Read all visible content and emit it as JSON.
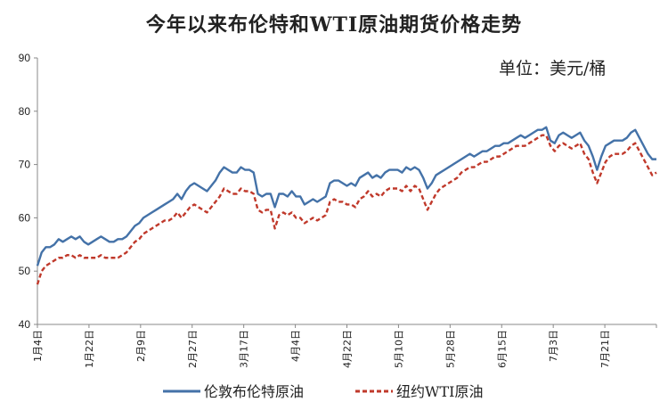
{
  "chart_data": {
    "type": "line",
    "title": "今年以来布伦特和WTI原油期货价格走势",
    "unit_label": "单位：美元/桶",
    "ylim": [
      40,
      90
    ],
    "yticks": [
      40,
      50,
      60,
      70,
      80,
      90
    ],
    "xticks": [
      "1月4日",
      "1月22日",
      "2月9日",
      "2月27日",
      "3月17日",
      "4月4日",
      "4月22日",
      "5月10日",
      "5月28日",
      "6月15日",
      "7月3日",
      "7月21日"
    ],
    "grid": false,
    "legend_position": "bottom",
    "colors": {
      "brent": "#4472a8",
      "wti": "#c0392b"
    },
    "series": [
      {
        "name": "伦敦布伦特原油",
        "key": "brent",
        "values": [
          51.0,
          53.5,
          54.5,
          54.5,
          55.0,
          56.0,
          55.5,
          56.0,
          56.5,
          56.0,
          56.5,
          55.5,
          55.0,
          55.5,
          56.0,
          56.5,
          56.0,
          55.5,
          55.5,
          56.0,
          56.0,
          56.5,
          57.5,
          58.5,
          59.0,
          60.0,
          60.5,
          61.0,
          61.5,
          62.0,
          62.5,
          63.0,
          63.5,
          64.5,
          63.5,
          65.0,
          66.0,
          66.5,
          66.0,
          65.5,
          65.0,
          66.0,
          67.0,
          68.5,
          69.5,
          69.0,
          68.5,
          68.5,
          69.5,
          69.0,
          69.0,
          68.5,
          64.5,
          64.0,
          64.5,
          64.5,
          62.0,
          64.5,
          64.5,
          64.0,
          65.0,
          64.0,
          64.0,
          62.5,
          63.0,
          63.5,
          63.0,
          63.5,
          64.0,
          66.5,
          67.0,
          67.0,
          66.5,
          66.0,
          66.5,
          66.0,
          67.5,
          68.0,
          68.5,
          67.5,
          68.0,
          67.5,
          68.5,
          69.0,
          69.0,
          69.0,
          68.5,
          69.5,
          69.0,
          69.5,
          69.0,
          67.5,
          65.5,
          66.5,
          68.0,
          68.5,
          69.0,
          69.5,
          70.0,
          70.5,
          71.0,
          71.5,
          72.0,
          71.5,
          72.0,
          72.5,
          72.5,
          73.0,
          73.5,
          73.5,
          74.0,
          74.0,
          74.5,
          75.0,
          75.5,
          75.0,
          75.5,
          76.0,
          76.5,
          76.5,
          77.0,
          74.5,
          74.0,
          75.5,
          76.0,
          75.5,
          75.0,
          75.5,
          76.0,
          74.5,
          73.5,
          71.5,
          69.0,
          71.5,
          73.5,
          74.0,
          74.5,
          74.5,
          74.5,
          75.0,
          76.0,
          76.5,
          75.0,
          73.5,
          72.0,
          71.0,
          71.0
        ]
      },
      {
        "name": "纽约WTI原油",
        "key": "wti",
        "values": [
          47.5,
          50.0,
          51.0,
          51.5,
          52.0,
          52.5,
          52.5,
          53.0,
          53.0,
          52.5,
          53.0,
          52.5,
          52.5,
          52.5,
          52.5,
          53.0,
          52.5,
          52.5,
          52.5,
          52.5,
          53.0,
          53.5,
          54.5,
          55.5,
          56.0,
          57.0,
          57.5,
          58.0,
          58.5,
          59.0,
          59.5,
          59.5,
          60.0,
          61.0,
          60.0,
          61.0,
          62.0,
          62.5,
          62.0,
          61.5,
          61.0,
          62.0,
          63.0,
          64.0,
          65.5,
          65.0,
          64.5,
          64.5,
          65.5,
          65.0,
          65.0,
          64.5,
          61.5,
          61.0,
          61.5,
          61.5,
          58.0,
          60.5,
          61.0,
          60.5,
          61.0,
          60.0,
          60.0,
          59.0,
          59.5,
          60.0,
          59.5,
          60.0,
          60.5,
          63.0,
          63.5,
          63.0,
          63.0,
          62.5,
          62.5,
          62.0,
          63.5,
          64.0,
          65.0,
          64.0,
          64.5,
          64.0,
          65.0,
          65.5,
          65.5,
          65.5,
          65.0,
          66.0,
          65.0,
          66.0,
          65.5,
          63.5,
          61.5,
          63.0,
          64.5,
          65.5,
          66.0,
          66.5,
          67.0,
          67.5,
          68.5,
          69.0,
          69.5,
          69.5,
          70.0,
          70.5,
          70.5,
          71.0,
          71.5,
          71.5,
          72.0,
          72.5,
          73.0,
          73.5,
          73.5,
          73.5,
          74.0,
          74.5,
          75.0,
          75.5,
          75.5,
          73.5,
          72.5,
          73.5,
          74.0,
          73.5,
          73.0,
          73.5,
          74.0,
          72.0,
          71.0,
          68.5,
          66.5,
          68.5,
          70.5,
          71.5,
          72.0,
          72.0,
          72.0,
          72.5,
          73.5,
          74.0,
          72.5,
          71.0,
          69.5,
          68.0,
          68.5
        ]
      }
    ]
  }
}
